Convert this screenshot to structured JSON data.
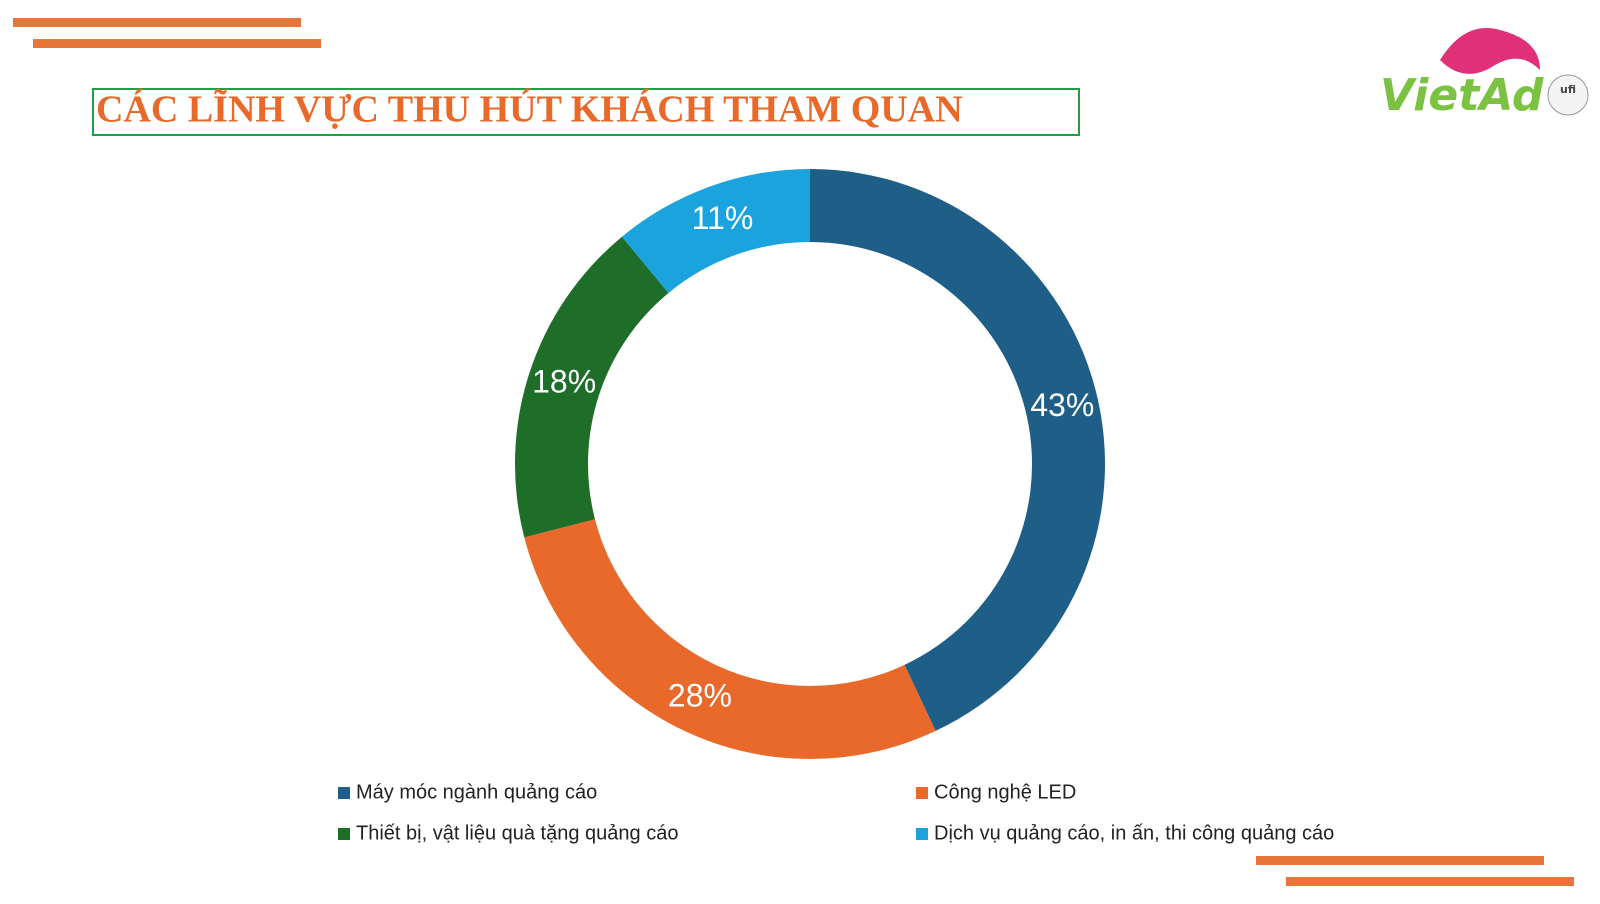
{
  "logo_text": "VietAd",
  "logo_badge": "ufi",
  "chart_data": {
    "type": "donut",
    "title": "CÁC LĨNH VỰC THU HÚT KHÁCH THAM QUAN",
    "categories": [
      "Máy móc ngành quảng cáo",
      "Công nghệ LED",
      "Thiết bị, vật liệu quà tặng quảng cáo",
      "Dịch vụ quảng cáo, in ấn, thi công quảng cáo"
    ],
    "values": [
      43,
      28,
      18,
      11
    ],
    "value_labels": [
      "43%",
      "28%",
      "18%",
      "11%"
    ],
    "colors": [
      "#1f5f87",
      "#e8692a",
      "#1e6e2a",
      "#1aa3dc"
    ],
    "legend": "bottom"
  }
}
